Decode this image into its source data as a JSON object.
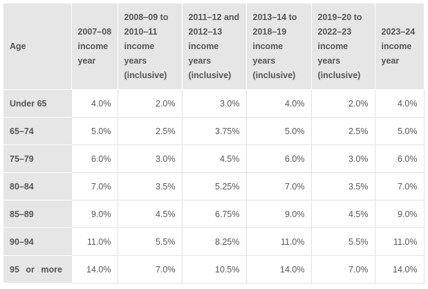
{
  "table": {
    "headers": [
      "Age",
      "2007–08 income year",
      "2008–09 to 2010–11 income years (inclusive)",
      "2011–12 and 2012–13 income years (inclusive)",
      "2013–14 to 2018–19 income years (inclusive)",
      "2019–20 to 2022–23 income years (inclusive)",
      "2023–24 income year"
    ],
    "rows": [
      {
        "age": "Under 65",
        "values": [
          "4.0%",
          "2.0%",
          "3.0%",
          "4.0%",
          "2.0%",
          "4.0%"
        ]
      },
      {
        "age": "65–74",
        "values": [
          "5.0%",
          "2.5%",
          "3.75%",
          "5.0%",
          "2.5%",
          "5.0%"
        ]
      },
      {
        "age": "75–79",
        "values": [
          "6.0%",
          "3.0%",
          "4.5%",
          "6.0%",
          "3.0%",
          "6.0%"
        ]
      },
      {
        "age": "80–84",
        "values": [
          "7.0%",
          "3.5%",
          "5.25%",
          "7.0%",
          "3.5%",
          "7.0%"
        ]
      },
      {
        "age": "85–89",
        "values": [
          "9.0%",
          "4.5%",
          "6.75%",
          "9.0%",
          "4.5%",
          "9.0%"
        ]
      },
      {
        "age": "90–94",
        "values": [
          "11.0%",
          "5.5%",
          "8.25%",
          "11.0%",
          "5.5%",
          "11.0%"
        ]
      },
      {
        "age": "95 or more",
        "values": [
          "14.0%",
          "7.0%",
          "10.5%",
          "14.0%",
          "7.0%",
          "14.0%"
        ]
      }
    ]
  }
}
